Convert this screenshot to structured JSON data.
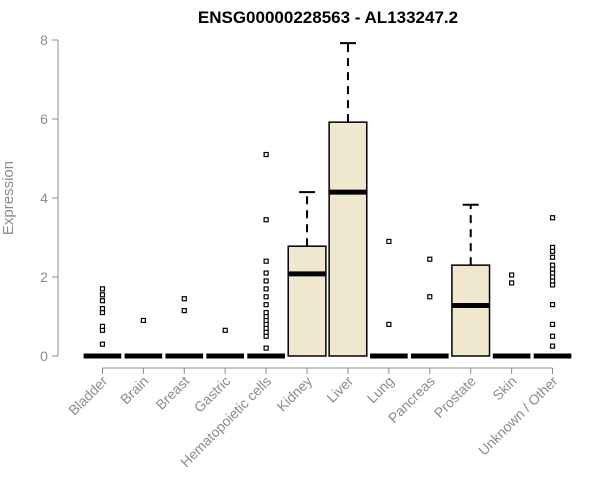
{
  "chart_data": {
    "type": "boxplot",
    "title": "ENSG00000228563 - AL133247.2",
    "xlabel": "",
    "ylabel": "Expression",
    "ylim": [
      0,
      8
    ],
    "yticks": [
      0,
      2,
      4,
      6,
      8
    ],
    "grid": false,
    "legend": "none",
    "box_fill": "#efe8cf",
    "box_stroke": "#000000",
    "categories": [
      "Bladder",
      "Brain",
      "Breast",
      "Gastric",
      "Hematopoietic cells",
      "Kidney",
      "Liver",
      "Lung",
      "Pancreas",
      "Prostate",
      "Skin",
      "Unknown / Other"
    ],
    "boxes": [
      {
        "category": "Bladder",
        "min": 0,
        "q1": 0,
        "median": 0,
        "q3": 0,
        "max": 0,
        "outliers": [
          0.3,
          0.65,
          0.75,
          1.1,
          1.2,
          1.4,
          1.55,
          1.7
        ]
      },
      {
        "category": "Brain",
        "min": 0,
        "q1": 0,
        "median": 0,
        "q3": 0,
        "max": 0,
        "outliers": [
          0.9
        ]
      },
      {
        "category": "Breast",
        "min": 0,
        "q1": 0,
        "median": 0,
        "q3": 0,
        "max": 0,
        "outliers": [
          1.15,
          1.45
        ]
      },
      {
        "category": "Gastric",
        "min": 0,
        "q1": 0,
        "median": 0,
        "q3": 0,
        "max": 0,
        "outliers": [
          0.65
        ]
      },
      {
        "category": "Hematopoietic cells",
        "min": 0,
        "q1": 0,
        "median": 0,
        "q3": 0,
        "max": 0,
        "outliers": [
          0.2,
          0.5,
          0.6,
          0.7,
          0.8,
          0.9,
          1.0,
          1.1,
          1.3,
          1.5,
          1.7,
          1.9,
          2.1,
          2.4,
          3.45,
          5.1
        ]
      },
      {
        "category": "Kidney",
        "min": 0,
        "q1": 0,
        "median": 2.08,
        "q3": 2.78,
        "max": 4.15,
        "outliers": []
      },
      {
        "category": "Liver",
        "min": 0,
        "q1": 0,
        "median": 4.15,
        "q3": 5.92,
        "max": 7.92,
        "outliers": []
      },
      {
        "category": "Lung",
        "min": 0,
        "q1": 0,
        "median": 0,
        "q3": 0,
        "max": 0,
        "outliers": [
          0.8,
          2.9
        ]
      },
      {
        "category": "Pancreas",
        "min": 0,
        "q1": 0,
        "median": 0,
        "q3": 0,
        "max": 0,
        "outliers": [
          1.5,
          2.45
        ]
      },
      {
        "category": "Prostate",
        "min": 0,
        "q1": 0,
        "median": 1.28,
        "q3": 2.3,
        "max": 3.83,
        "outliers": []
      },
      {
        "category": "Skin",
        "min": 0,
        "q1": 0,
        "median": 0,
        "q3": 0,
        "max": 0,
        "outliers": [
          1.85,
          2.05
        ]
      },
      {
        "category": "Unknown / Other",
        "min": 0,
        "q1": 0,
        "median": 0,
        "q3": 0,
        "max": 0,
        "outliers": [
          0.25,
          0.5,
          0.8,
          1.3,
          1.8,
          1.9,
          2.0,
          2.1,
          2.2,
          2.3,
          2.5,
          2.65,
          2.75,
          3.5
        ]
      }
    ]
  }
}
